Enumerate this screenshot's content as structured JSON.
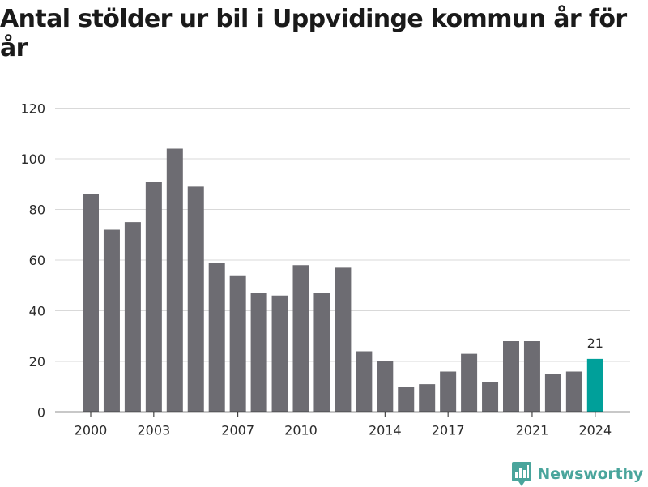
{
  "title": "Antal stölder ur bil i Uppvidinge kommun år för år",
  "brand": {
    "name": "Newsworthy",
    "icon": "bar-chart-pin-icon",
    "color": "#4aa59c"
  },
  "colors": {
    "bar": "#6d6c72",
    "highlight": "#00a09a",
    "grid": "#d9d9d9",
    "axis": "#222222",
    "text": "#2b2b2b"
  },
  "chart_data": {
    "type": "bar",
    "title": "Antal stölder ur bil i Uppvidinge kommun år för år",
    "xlabel": "",
    "ylabel": "",
    "categories": [
      "2000",
      "2001",
      "2002",
      "2003",
      "2004",
      "2005",
      "2006",
      "2007",
      "2008",
      "2009",
      "2010",
      "2011",
      "2012",
      "2013",
      "2014",
      "2015",
      "2016",
      "2017",
      "2018",
      "2019",
      "2020",
      "2021",
      "2022",
      "2023",
      "2024"
    ],
    "values": [
      86,
      72,
      75,
      91,
      104,
      89,
      59,
      54,
      47,
      46,
      58,
      47,
      57,
      24,
      20,
      10,
      11,
      16,
      23,
      12,
      28,
      28,
      15,
      16,
      21
    ],
    "x_tick_labels": [
      "2000",
      "2003",
      "2007",
      "2010",
      "2014",
      "2017",
      "2021",
      "2024"
    ],
    "y_ticks": [
      0,
      20,
      40,
      60,
      80,
      100,
      120
    ],
    "ylim": [
      0,
      120
    ],
    "grid": true,
    "legend": "none",
    "highlight": {
      "category": "2024",
      "value_label": "21"
    }
  }
}
